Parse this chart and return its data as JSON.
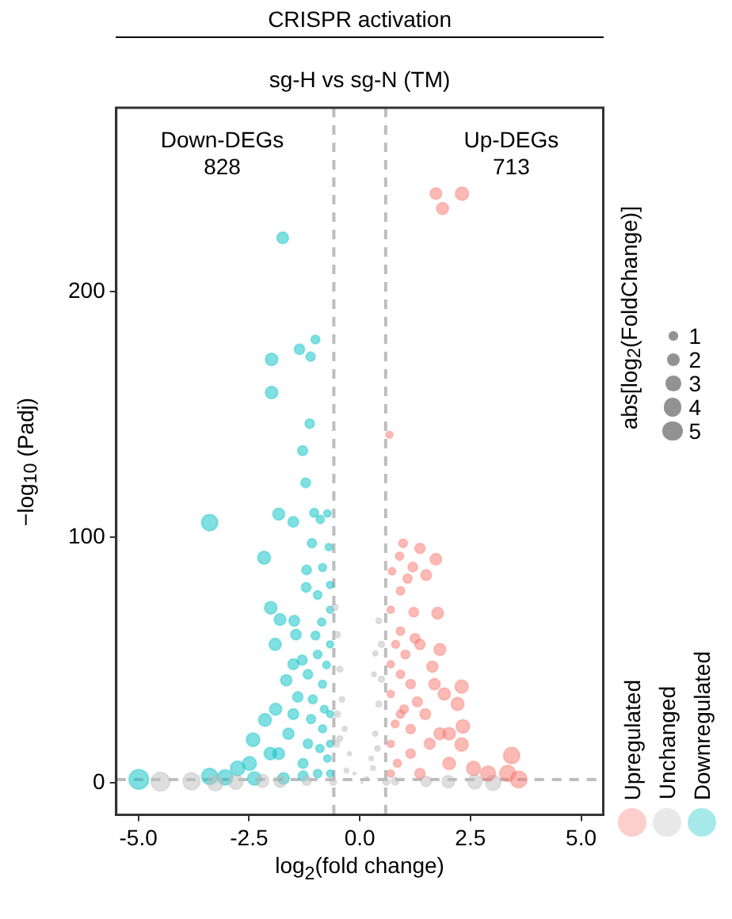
{
  "chart_data": {
    "type": "bubble",
    "title": "CRISPR activation",
    "subtitle": "sg-H vs sg-N (TM)",
    "xlabel": "log$_{2}$(fold change)",
    "ylabel": "−log$_{10}$ (Padj)",
    "legend_title": "abs[log$_{2}$(FoldChange)]",
    "size_legend": [
      {
        "value": 1,
        "label": "1"
      },
      {
        "value": 2,
        "label": "2"
      },
      {
        "value": 3,
        "label": "3"
      },
      {
        "value": 4,
        "label": "4"
      },
      {
        "value": 5,
        "label": "5"
      }
    ],
    "annotations": [
      "Down-DEGs\n828",
      "Up-DEGs\n713"
    ],
    "xlim": [
      -5.5,
      5.5
    ],
    "ylim": [
      -13,
      275
    ],
    "xticks": [
      {
        "value": -5,
        "label": "-5.0"
      },
      {
        "value": -2.5,
        "label": "-2.5"
      },
      {
        "value": 0,
        "label": "0.0"
      },
      {
        "value": 2.5,
        "label": "2.5"
      },
      {
        "value": 5,
        "label": "5.0"
      }
    ],
    "yticks": [
      0,
      100,
      200
    ],
    "grid": false,
    "legend": "right",
    "marker": "circle",
    "ref_lines": [
      {
        "axis": "x",
        "value": -0.585,
        "color": "#bdbdbd",
        "line_style": "dashed"
      },
      {
        "axis": "x",
        "value": 0.585,
        "color": "#bdbdbd",
        "line_style": "dashed"
      },
      {
        "axis": "y",
        "value": 1.3,
        "color": "#bdbdbd",
        "line_style": "dashed"
      }
    ],
    "series": [
      {
        "name": "Upregulated",
        "color": "#f8766d",
        "x": [
          1.72,
          2.31,
          1.87,
          0.67,
          0.98,
          1.36,
          1.72,
          0.9,
          1.2,
          0.73,
          1.08,
          1.5,
          0.92,
          0.7,
          1.22,
          1.76,
          0.92,
          1.25,
          1.81,
          0.81,
          1.03,
          1.64,
          2.3,
          2.21,
          1.91,
          2.33,
          2.3,
          3.43,
          2.9,
          3.59,
          3.34,
          2.57,
          2.02,
          1.48,
          1.15,
          0.92,
          0.7,
          0.7,
          0.7,
          0.7,
          1.15,
          1.58,
          2.02,
          1.36,
          1.15,
          1.81,
          0.92,
          1.36,
          1.69,
          0.85,
          1.0,
          1.3,
          0.8
        ],
        "values": [
          240,
          240,
          234,
          141.8,
          97.6,
          95.5,
          91.1,
          92.3,
          87.9,
          86.2,
          83.2,
          84.6,
          78.2,
          70.5,
          69.5,
          69.1,
          61.8,
          58.8,
          54.3,
          56.4,
          52.3,
          47.3,
          39.2,
          32.1,
          36.2,
          23,
          15.6,
          11.1,
          3.8,
          1.4,
          3.8,
          5.9,
          20,
          28,
          40.2,
          28,
          36.2,
          48.3,
          15.9,
          3.8,
          11.9,
          15.9,
          7.9,
          3.8,
          21.9,
          20,
          44.2,
          56.4,
          40.2,
          8,
          30,
          33,
          24
        ],
        "sizes": [
          1.72,
          2.31,
          1.87,
          0.67,
          0.98,
          1.36,
          1.72,
          0.9,
          1.2,
          0.73,
          1.08,
          1.5,
          0.92,
          0.7,
          1.22,
          1.76,
          0.92,
          1.25,
          1.81,
          0.81,
          1.03,
          1.64,
          2.3,
          2.21,
          1.91,
          2.33,
          2.3,
          3.43,
          2.9,
          3.59,
          3.34,
          2.57,
          2.02,
          1.48,
          1.15,
          0.92,
          0.7,
          0.7,
          0.7,
          0.7,
          1.15,
          1.58,
          2.02,
          1.36,
          1.15,
          1.81,
          0.92,
          1.36,
          1.69,
          0.85,
          1.0,
          1.3,
          0.8
        ]
      },
      {
        "name": "Unchanged",
        "color": "#bebebe",
        "x": [
          -0.56,
          0.43,
          0.35,
          -0.51,
          -0.45,
          -0.4,
          -0.34,
          -0.23,
          -0.12,
          0.05,
          0.16,
          0.26,
          0.35,
          0.43,
          0.49,
          0.49,
          -0.51,
          -0.53,
          0.32,
          -4.5,
          -3.8,
          -3.26,
          -2.8,
          -2.2,
          -1.8,
          -1.2,
          -0.6,
          0.6,
          0.8,
          1.5,
          2.0,
          2.6,
          3.01,
          -0.3,
          0.3,
          -0.45,
          0.4
        ],
        "values": [
          71.5,
          66,
          52.7,
          60.4,
          46.3,
          34,
          22,
          11.9,
          3.8,
          0,
          1.8,
          9.9,
          20,
          32.1,
          42.2,
          56.4,
          28,
          15.9,
          44.2,
          0.5,
          0.6,
          0,
          0.4,
          0.8,
          0.5,
          0.9,
          0.3,
          0.4,
          0.7,
          0.6,
          0.5,
          0.4,
          0,
          5,
          6,
          18,
          14
        ],
        "sizes": [
          0.56,
          0.43,
          0.35,
          0.51,
          0.45,
          0.4,
          0.34,
          0.23,
          0.12,
          0.05,
          0.16,
          0.26,
          0.35,
          0.43,
          0.49,
          0.49,
          0.51,
          0.53,
          0.32,
          4.5,
          3.8,
          3.26,
          2.8,
          2.2,
          1.8,
          1.2,
          0.6,
          0.6,
          0.8,
          1.5,
          2.0,
          2.6,
          3.01,
          0.3,
          0.3,
          0.45,
          0.4
        ]
      },
      {
        "name": "Downregulated",
        "color": "#00bfc4",
        "x": [
          -1.74,
          -1.0,
          -1.36,
          -1.11,
          -1.99,
          -1.99,
          -1.13,
          -1.29,
          -1.22,
          -3.39,
          -1.83,
          -1.5,
          -1.03,
          -0.73,
          -0.89,
          -1.08,
          -0.7,
          -2.16,
          -1.2,
          -0.84,
          -1.21,
          -0.95,
          -2.01,
          -1.8,
          -1.48,
          -0.86,
          -1.91,
          -1.44,
          -1.5,
          -1.66,
          -0.95,
          -1.17,
          -0.84,
          -2.14,
          -2.41,
          -2.02,
          -2.76,
          -2.49,
          -3.39,
          -4.99,
          -1.5,
          -1.17,
          -0.84,
          -1.83,
          -1.28,
          -0.73,
          -1.06,
          -1.61,
          -0.67,
          -0.67,
          -0.67,
          -0.67,
          -0.67,
          -0.67,
          -0.95,
          -1.28,
          -1.72,
          -2.38,
          -3.04,
          -0.8,
          -1.0,
          -1.3,
          -0.9,
          -1.1,
          -0.75,
          -1.4,
          -1.9
        ],
        "values": [
          222,
          180.6,
          176.6,
          173.6,
          172.5,
          159,
          146.3,
          135.3,
          122.2,
          106,
          109.5,
          106.3,
          110,
          109.7,
          107.3,
          97.6,
          96,
          91.7,
          86.7,
          87.7,
          79.6,
          76.5,
          71.3,
          66.5,
          66,
          65.5,
          56.4,
          60.4,
          48.3,
          41.8,
          52.3,
          44.2,
          40.2,
          25.6,
          17.6,
          11.9,
          5.9,
          7.9,
          2.6,
          1.4,
          28,
          15.9,
          22,
          11.9,
          7.9,
          9.9,
          34,
          20,
          56.4,
          70.5,
          80.6,
          28,
          15.9,
          3.8,
          3.8,
          2.8,
          1.8,
          1.8,
          2.2,
          30,
          60,
          50,
          14,
          26,
          48,
          35,
          30
        ],
        "sizes": [
          1.74,
          1.0,
          1.36,
          1.11,
          1.99,
          1.99,
          1.13,
          1.29,
          1.22,
          3.39,
          1.83,
          1.5,
          1.03,
          0.73,
          0.89,
          1.08,
          0.7,
          2.16,
          1.2,
          0.84,
          1.21,
          0.95,
          2.01,
          1.8,
          1.48,
          0.86,
          1.91,
          1.44,
          1.5,
          1.66,
          0.95,
          1.17,
          0.84,
          2.14,
          2.41,
          2.02,
          2.76,
          2.49,
          3.39,
          4.99,
          1.5,
          1.17,
          0.84,
          1.83,
          1.28,
          0.73,
          1.06,
          1.61,
          0.67,
          0.67,
          0.67,
          0.67,
          0.67,
          0.67,
          0.95,
          1.28,
          1.72,
          2.38,
          3.04,
          0.8,
          1.0,
          1.3,
          0.9,
          1.1,
          0.75,
          1.4,
          1.9
        ]
      }
    ]
  }
}
